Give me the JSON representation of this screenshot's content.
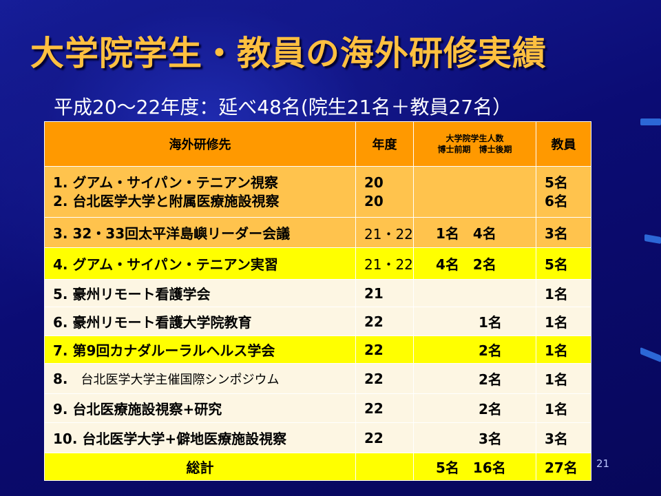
{
  "title": "大学院学生・教員の海外研修実績",
  "subtitle": "平成20～22年度：延べ48名(院生21名＋教員27名）",
  "table": {
    "headers": {
      "destination": "海外研修先",
      "year": "年度",
      "students_line1": "大学院学生人数",
      "students_line2": "博士前期　博士後期",
      "faculty": "教員"
    },
    "rows": [
      {
        "label1": "1.  グアム・サイパン・テニアン視察",
        "label2": "2.  台北医学大学と附属医療施設視察",
        "year1": "20",
        "year2": "20",
        "students": "",
        "faculty1": "5名",
        "faculty2": "6名"
      },
      {
        "label": "3.  32・33回太平洋島嶼リーダー会議",
        "year": "21・22",
        "students": "1名　4名",
        "faculty": "3名"
      },
      {
        "label": "4.  グアム・サイパン・テニアン実習",
        "year": "21・22",
        "students": "4名　2名",
        "faculty": "5名"
      },
      {
        "label": "5.  豪州リモート看護学会",
        "year": "21",
        "students": "",
        "faculty": "1名"
      },
      {
        "label": "6.  豪州リモート看護大学院教育",
        "year": "22",
        "students": "1名",
        "faculty": "1名"
      },
      {
        "label": "7.  第9回カナダルーラルヘルス学会",
        "year": "22",
        "students": "2名",
        "faculty": "1名"
      },
      {
        "label_num": "8.",
        "label_text": "台北医学大学主催国際シンポジウム",
        "year": "22",
        "students": "2名",
        "faculty": "1名"
      },
      {
        "label": "9.  台北医療施設視察+研究",
        "year": "22",
        "students": "2名",
        "faculty": "1名"
      },
      {
        "label": "10.  台北医学大学+僻地医療施設視察",
        "year": "22",
        "students": "3名",
        "faculty": "3名"
      }
    ],
    "total": {
      "label": "総計",
      "year": "",
      "students": "5名　16名",
      "faculty": "27名"
    }
  },
  "page_number": "21"
}
